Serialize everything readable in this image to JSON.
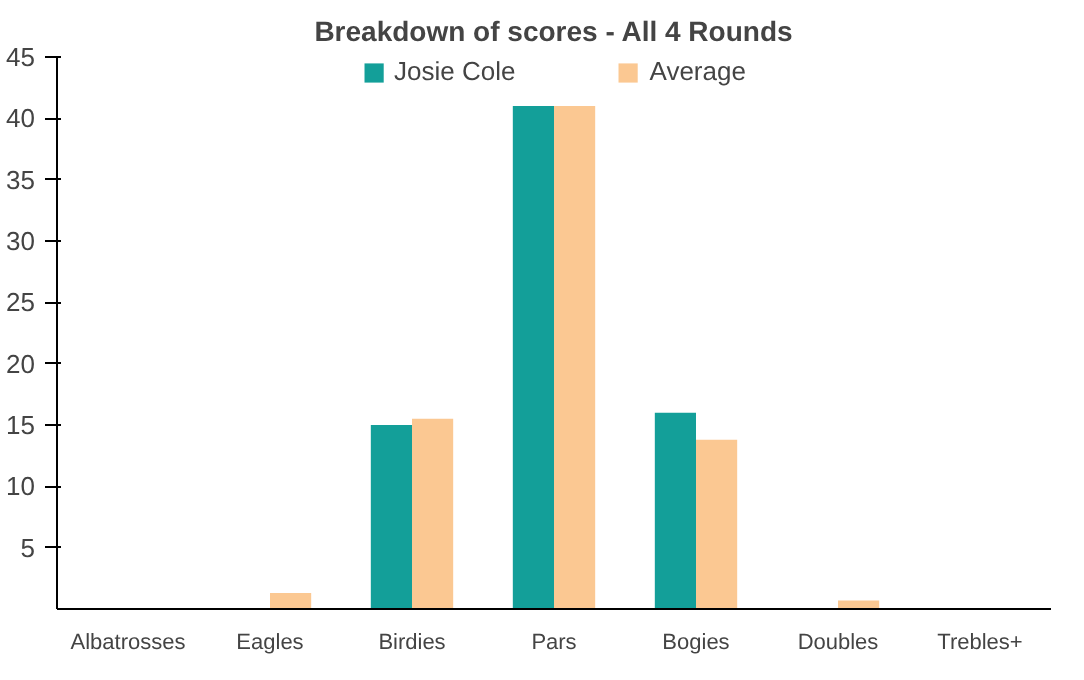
{
  "chart_data": {
    "type": "bar",
    "title": "Breakdown of scores - All 4 Rounds",
    "categories": [
      "Albatrosses",
      "Eagles",
      "Birdies",
      "Pars",
      "Bogies",
      "Doubles",
      "Trebles+"
    ],
    "series": [
      {
        "name": "Josie Cole",
        "color": "#139f99",
        "values": [
          0,
          0,
          15,
          41,
          16,
          0,
          0
        ]
      },
      {
        "name": "Average",
        "color": "#fbc892",
        "values": [
          0,
          1.3,
          15.5,
          41,
          13.8,
          0.7,
          null
        ]
      }
    ],
    "ylim": [
      0,
      45
    ],
    "yticks": [
      5,
      10,
      15,
      20,
      25,
      30,
      35,
      40,
      45
    ],
    "grid": false,
    "legend": "top"
  }
}
